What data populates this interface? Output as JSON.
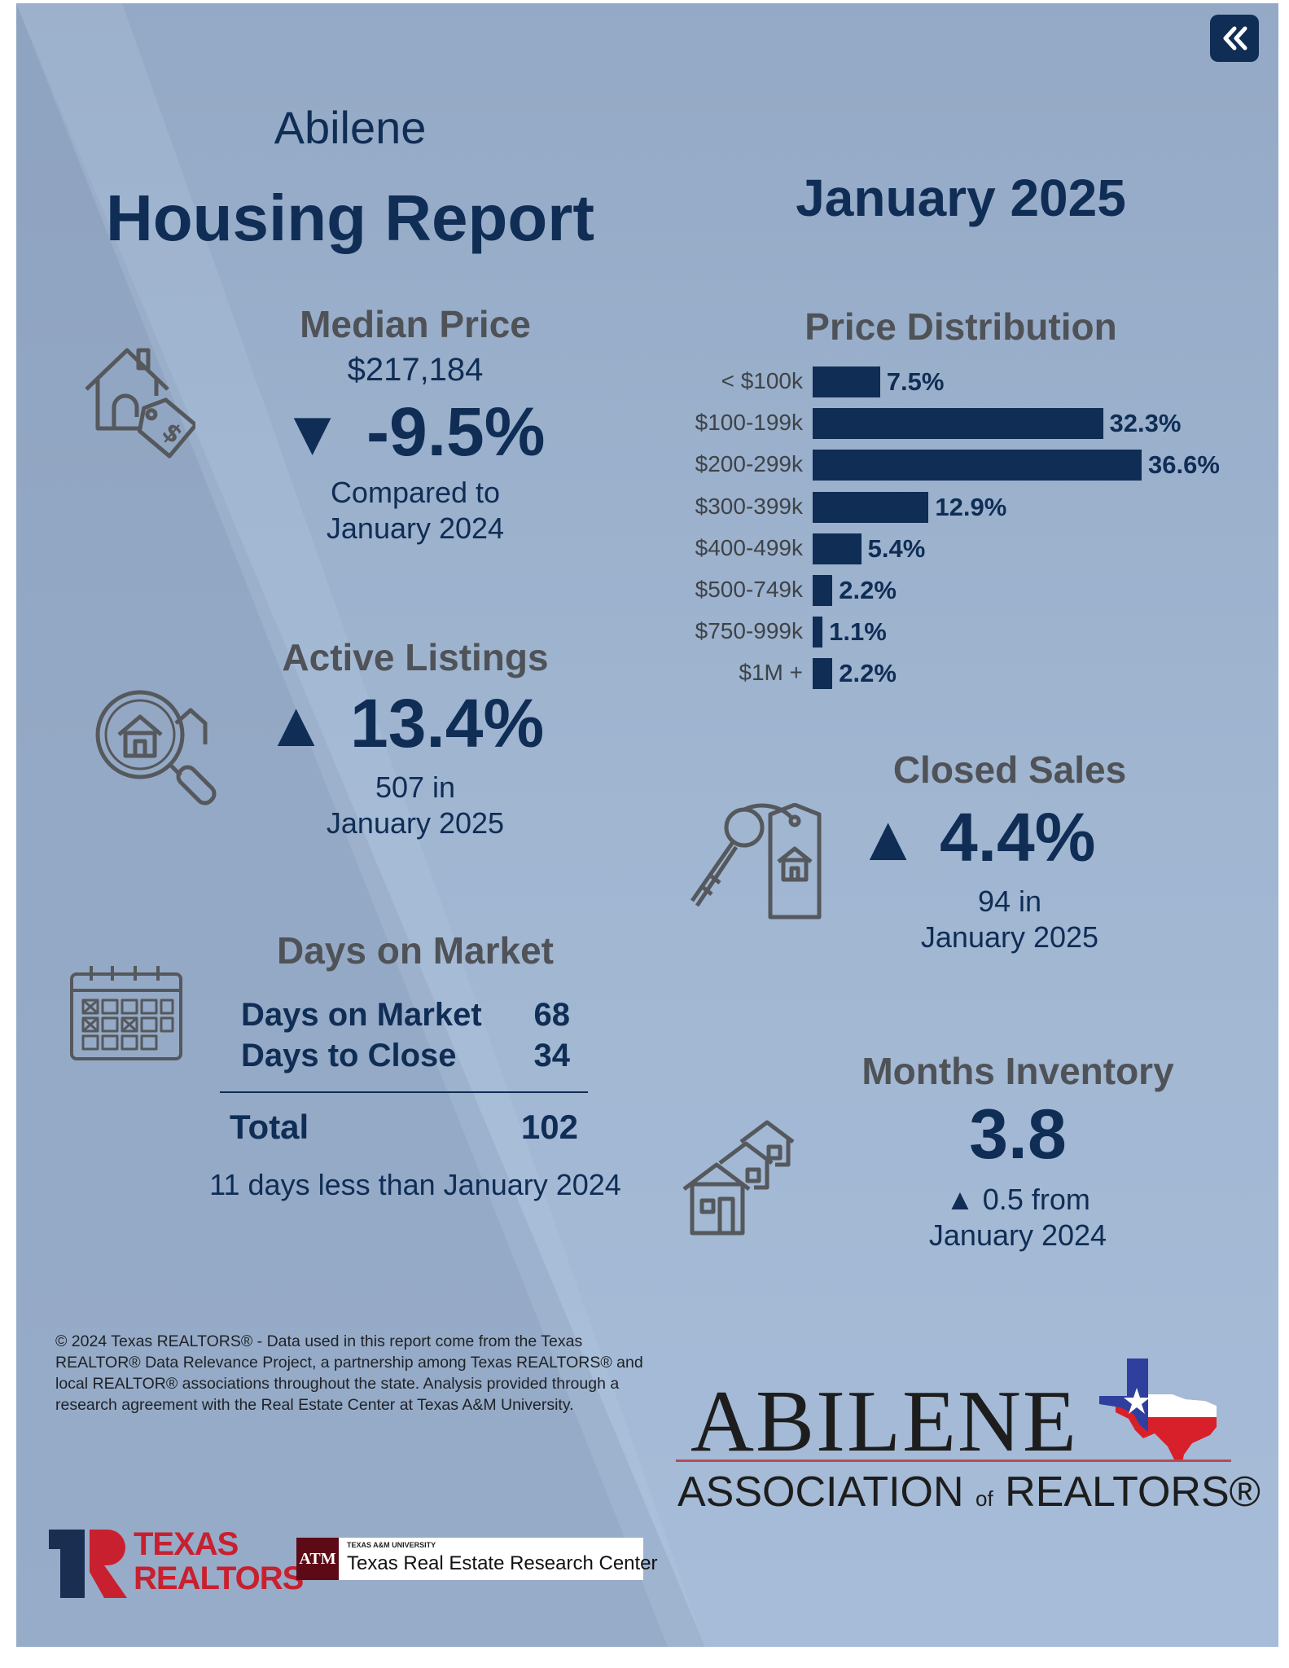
{
  "header": {
    "city": "Abilene",
    "title": "Housing Report",
    "period": "January 2025"
  },
  "back_button": {
    "icon": "double-chevron-left-icon",
    "label": "«"
  },
  "median_price": {
    "heading": "Median Price",
    "value": "$217,184",
    "arrow": "▼",
    "change": "-9.5%",
    "compare_line1": "Compared to",
    "compare_line2": "January 2024",
    "icon": "house-price-tag-icon"
  },
  "active_listings": {
    "heading": "Active Listings",
    "arrow": "▲",
    "change": "13.4%",
    "count_line1": "507 in",
    "count_line2": "January 2025",
    "icon": "magnifier-house-icon"
  },
  "days_on_market": {
    "heading": "Days on Market",
    "rows": [
      {
        "label": "Days on Market",
        "value": "68"
      },
      {
        "label": "Days to Close",
        "value": "34"
      }
    ],
    "total_label": "Total",
    "total_value": "102",
    "comparison": "11 days less than January 2024",
    "icon": "calendar-icon"
  },
  "closed_sales": {
    "heading": "Closed Sales",
    "arrow": "▲",
    "change": "4.4%",
    "count_line1": "94 in",
    "count_line2": "January 2025",
    "icon": "key-house-tag-icon"
  },
  "months_inventory": {
    "heading": "Months Inventory",
    "value": "3.8",
    "change_line1": "▲ 0.5 from",
    "change_line2": "January 2024",
    "icon": "houses-stack-icon"
  },
  "price_distribution": {
    "heading": "Price Distribution"
  },
  "chart_data": {
    "type": "bar",
    "orientation": "horizontal",
    "title": "Price Distribution",
    "categories": [
      "< $100k",
      "$100-199k",
      "$200-299k",
      "$300-399k",
      "$400-499k",
      "$500-749k",
      "$750-999k",
      "$1M +"
    ],
    "values": [
      7.5,
      32.3,
      36.6,
      12.9,
      5.4,
      2.2,
      1.1,
      2.2
    ],
    "value_labels": [
      "7.5%",
      "32.3%",
      "36.6%",
      "12.9%",
      "5.4%",
      "2.2%",
      "1.1%",
      "2.2%"
    ],
    "unit": "%",
    "grid": false,
    "bar_color": "#0f2d55"
  },
  "footnote": "© 2024 Texas REALTORS® - Data used in this report come from the Texas REALTOR® Data Relevance Project, a partnership among Texas REALTORS® and local REALTOR® associations throughout the state. Analysis provided through a research agreement with the Real Estate Center at Texas A&M University.",
  "logos": {
    "abilene_word": "ABILENE",
    "abilene_sub_a": "ASSOCIATION",
    "abilene_sub_of": "of",
    "abilene_sub_b": "REALTORS®",
    "texas_realtors_line1": "TEXAS",
    "texas_realtors_line2": "REALTORS",
    "tamu_small": "TEXAS A&M UNIVERSITY",
    "tamu_center": "Texas Real Estate Research Center",
    "tamu_mark": "ATM"
  },
  "colors": {
    "navy": "#0f2d55",
    "heading_gray": "#4f5257",
    "flag_blue": "#2f3f9e",
    "flag_red": "#d8202a"
  }
}
